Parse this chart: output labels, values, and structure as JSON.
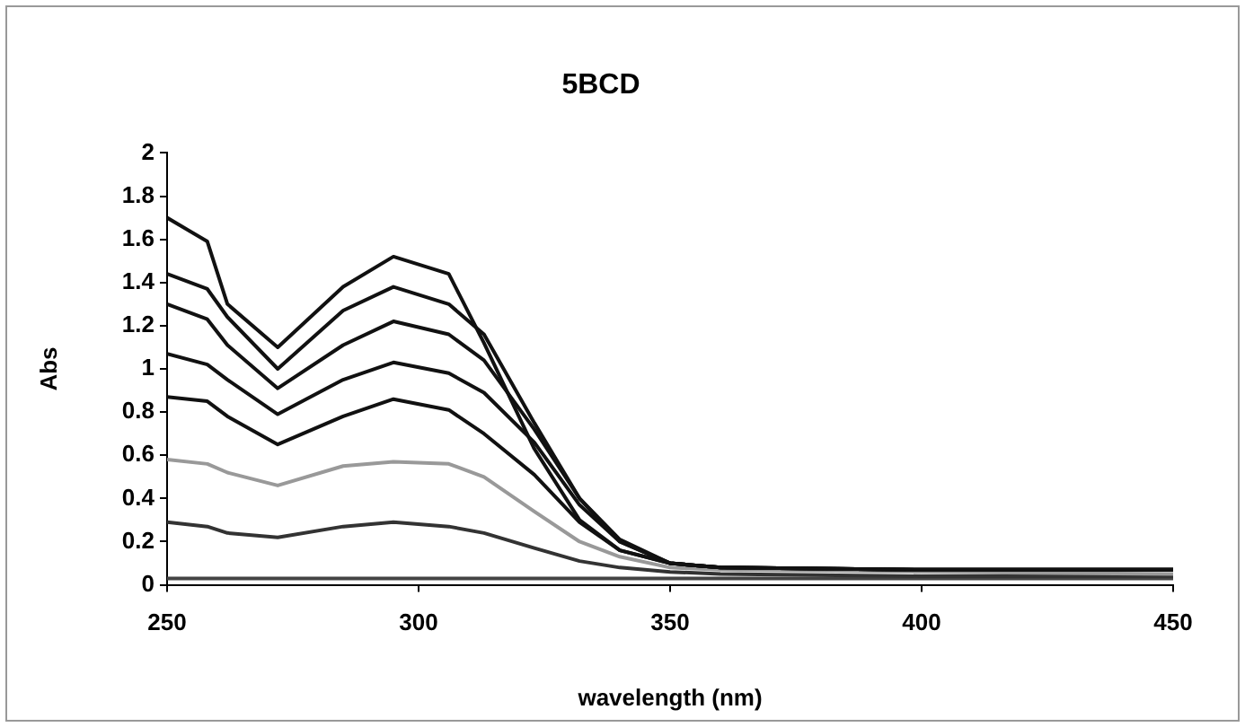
{
  "chart_data": {
    "type": "line",
    "title": "5BCD",
    "xlabel": "wavelength (nm)",
    "ylabel": "Abs",
    "x": [
      250,
      258,
      262,
      272,
      285,
      295,
      306,
      313,
      323,
      332,
      340,
      350,
      360,
      400,
      450
    ],
    "xlim": [
      250,
      450
    ],
    "xticks": [
      250,
      300,
      350,
      400,
      450
    ],
    "ylim": [
      0,
      2
    ],
    "yticks": [
      0,
      0.2,
      0.4,
      0.6,
      0.8,
      1,
      1.2,
      1.4,
      1.6,
      1.8,
      2
    ],
    "grid": false,
    "legend": false,
    "marker": "none",
    "line_style": "solid",
    "series": [
      {
        "color": "#111111",
        "values": [
          1.7,
          1.59,
          1.3,
          1.1,
          1.38,
          1.52,
          1.44,
          1.12,
          0.63,
          0.3,
          0.16,
          0.1,
          0.08,
          0.07,
          0.07
        ]
      },
      {
        "color": "#111111",
        "values": [
          1.44,
          1.37,
          1.24,
          1.0,
          1.27,
          1.38,
          1.3,
          1.16,
          0.75,
          0.4,
          0.2,
          0.1,
          0.08,
          0.07,
          0.07
        ]
      },
      {
        "color": "#111111",
        "values": [
          1.3,
          1.23,
          1.11,
          0.91,
          1.11,
          1.22,
          1.16,
          1.04,
          0.72,
          0.4,
          0.21,
          0.1,
          0.08,
          0.07,
          0.07
        ]
      },
      {
        "color": "#111111",
        "values": [
          1.07,
          1.02,
          0.95,
          0.79,
          0.95,
          1.03,
          0.98,
          0.89,
          0.66,
          0.37,
          0.2,
          0.1,
          0.08,
          0.07,
          0.07
        ]
      },
      {
        "color": "#111111",
        "values": [
          0.87,
          0.85,
          0.78,
          0.65,
          0.78,
          0.86,
          0.81,
          0.7,
          0.51,
          0.29,
          0.16,
          0.1,
          0.08,
          0.07,
          0.07
        ]
      },
      {
        "color": "#999999",
        "values": [
          0.58,
          0.56,
          0.52,
          0.46,
          0.55,
          0.57,
          0.56,
          0.5,
          0.34,
          0.2,
          0.13,
          0.08,
          0.07,
          0.06,
          0.05
        ]
      },
      {
        "color": "#333333",
        "values": [
          0.29,
          0.27,
          0.24,
          0.22,
          0.27,
          0.29,
          0.27,
          0.24,
          0.17,
          0.11,
          0.08,
          0.06,
          0.05,
          0.04,
          0.04
        ]
      },
      {
        "color": "#444444",
        "values": [
          0.03,
          0.03,
          0.03,
          0.03,
          0.03,
          0.03,
          0.03,
          0.03,
          0.03,
          0.03,
          0.03,
          0.03,
          0.03,
          0.03,
          0.03
        ]
      }
    ]
  }
}
